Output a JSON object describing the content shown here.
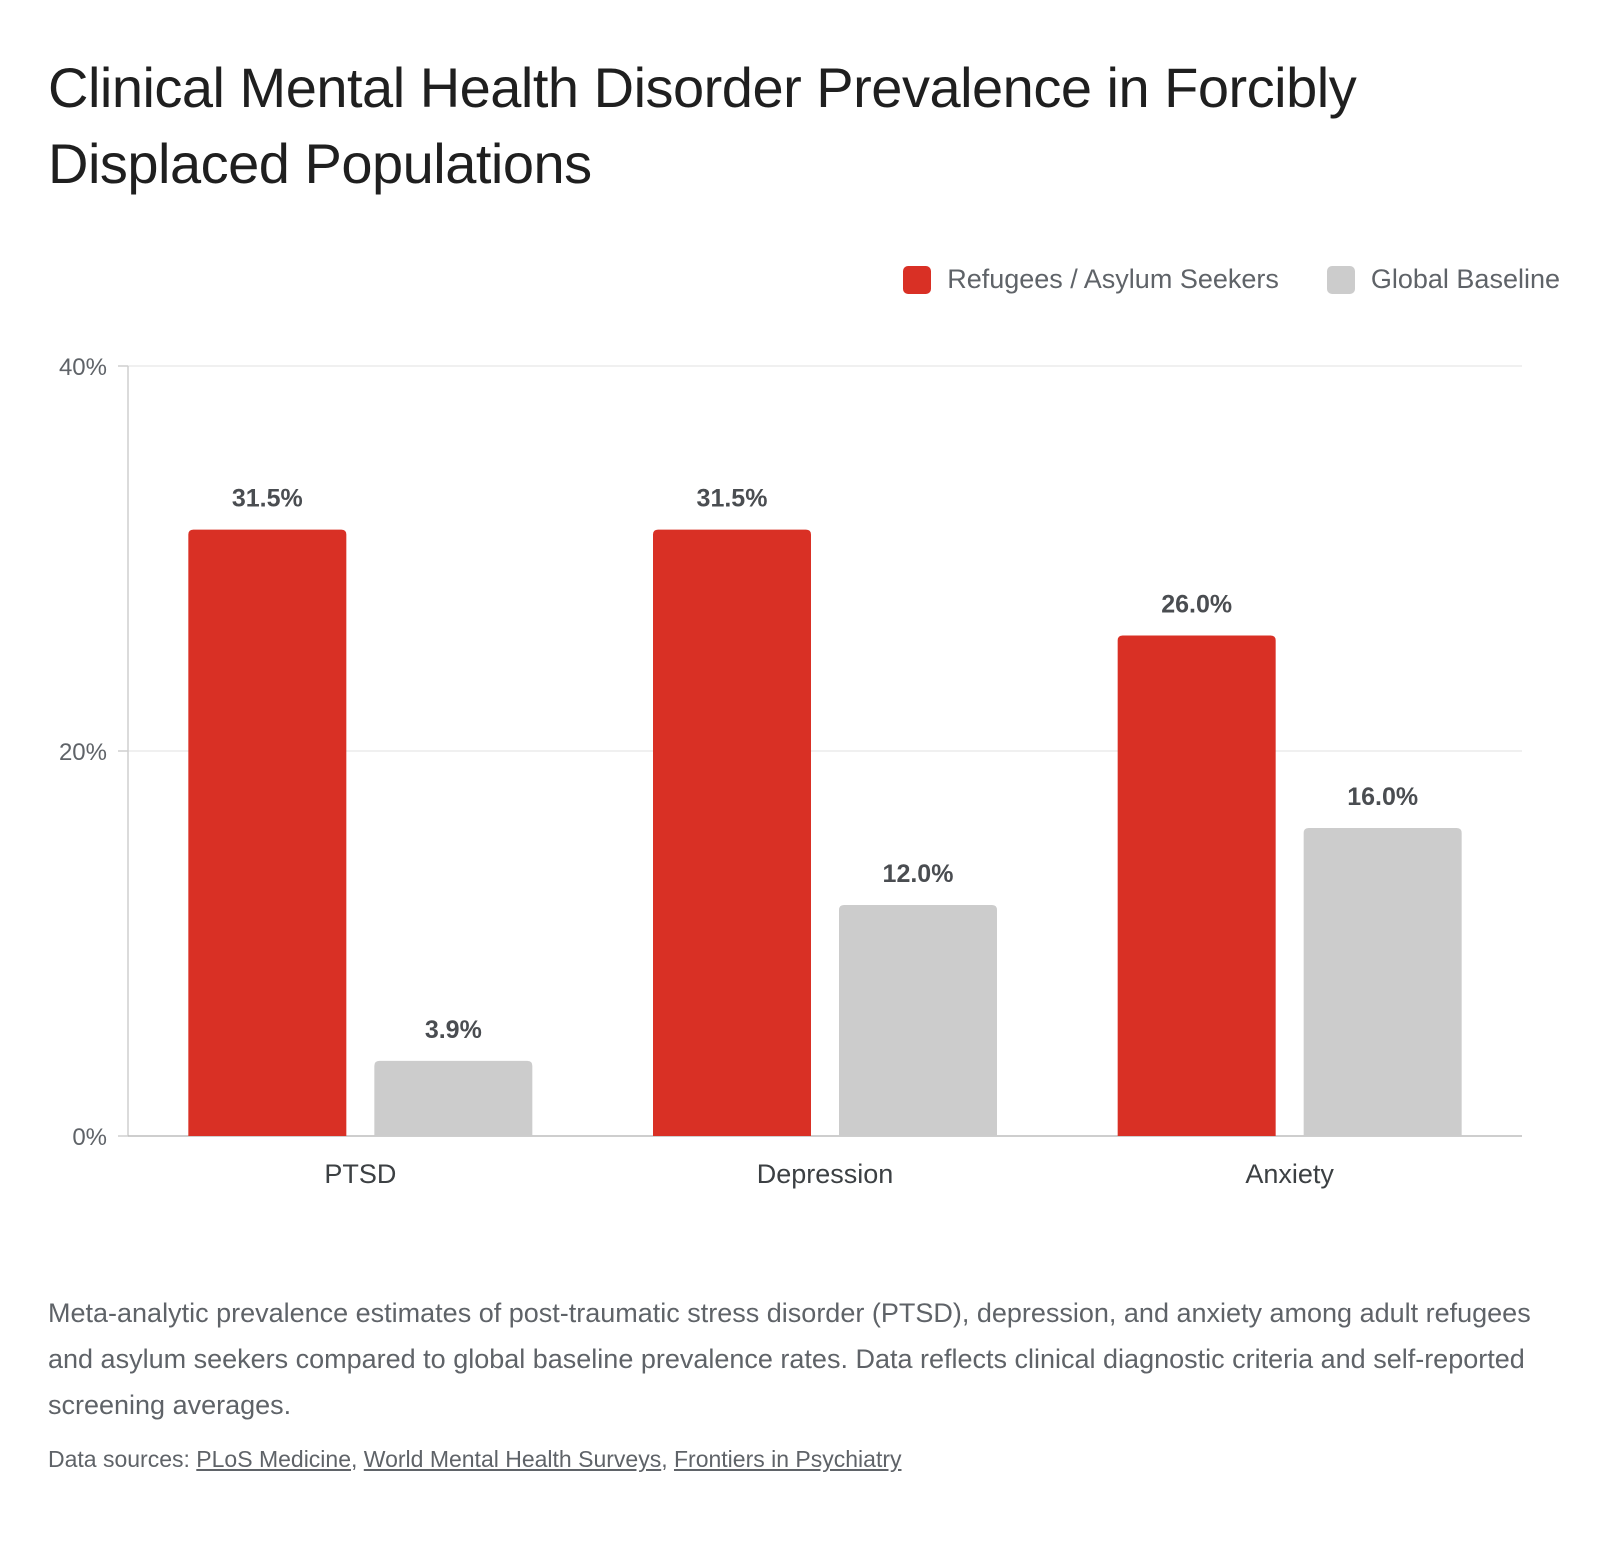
{
  "title": "Clinical Mental Health Disorder Prevalence in Forcibly Displaced Populations",
  "legend": [
    {
      "label": "Refugees / Asylum Seekers",
      "color": "#d93025"
    },
    {
      "label": "Global Baseline",
      "color": "#cccccc"
    }
  ],
  "caption": "Meta-analytic prevalence estimates of post-traumatic stress disorder (PTSD), depression, and anxiety among adult refugees and asylum seekers compared to global baseline prevalence rates. Data reflects clinical diagnostic criteria and self-reported screening averages.",
  "sources": {
    "prefix": "Data sources: ",
    "links": [
      "PLoS Medicine",
      "World Mental Health Surveys",
      "Frontiers in Psychiatry"
    ]
  },
  "chart_data": {
    "type": "bar",
    "title": "Clinical Mental Health Disorder Prevalence in Forcibly Displaced Populations",
    "categories": [
      "PTSD",
      "Depression",
      "Anxiety"
    ],
    "series": [
      {
        "name": "Refugees / Asylum Seekers",
        "values": [
          31.5,
          31.5,
          26.0
        ],
        "labels": [
          "31.5%",
          "31.5%",
          "26.0%"
        ],
        "color": "#d93025"
      },
      {
        "name": "Global Baseline",
        "values": [
          3.9,
          12.0,
          16.0
        ],
        "labels": [
          "3.9%",
          "12.0%",
          "16.0%"
        ],
        "color": "#cccccc"
      }
    ],
    "yticks": [
      "0%",
      "20%",
      "40%"
    ],
    "ytick_values": [
      0,
      20,
      40
    ],
    "ylim": [
      0,
      40
    ],
    "xlabel": "",
    "ylabel": "",
    "grid": true,
    "legend_position": "top-right"
  }
}
